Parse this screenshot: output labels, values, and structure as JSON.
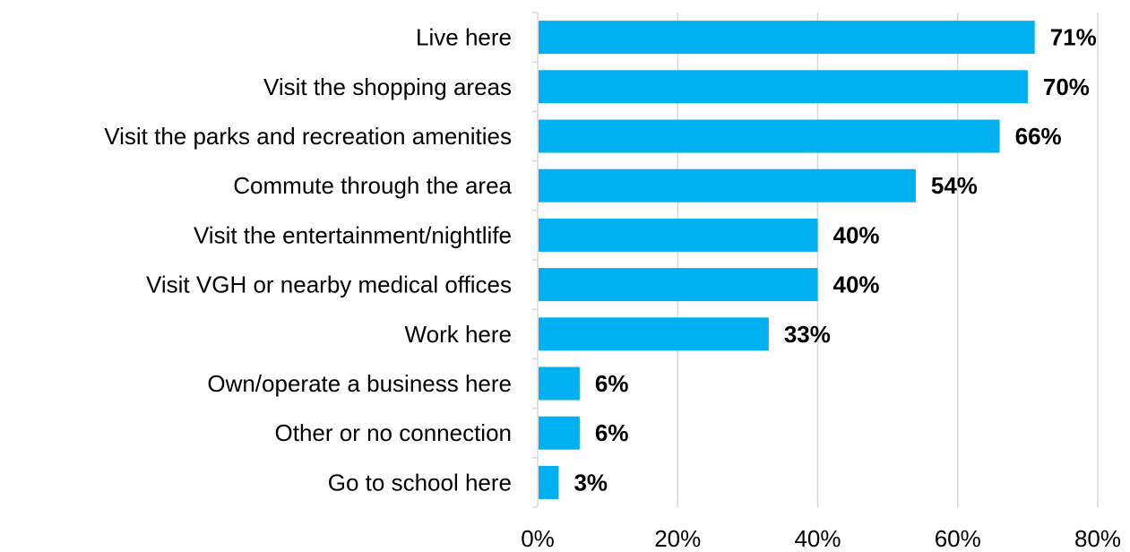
{
  "chart_data": {
    "type": "bar",
    "orientation": "horizontal",
    "categories": [
      "Live here",
      "Visit the shopping areas",
      "Visit the parks and recreation amenities",
      "Commute through the area",
      "Visit the entertainment/nightlife",
      "Visit VGH or nearby medical offices",
      "Work here",
      "Own/operate a business here",
      "Other or no connection",
      "Go to school here"
    ],
    "values": [
      71,
      70,
      66,
      54,
      40,
      40,
      33,
      6,
      6,
      3
    ],
    "value_labels": [
      "71%",
      "70%",
      "66%",
      "54%",
      "40%",
      "40%",
      "33%",
      "6%",
      "6%",
      "3%"
    ],
    "x_ticks": [
      0,
      20,
      40,
      60,
      80
    ],
    "x_tick_labels": [
      "0%",
      "20%",
      "40%",
      "60%",
      "80%"
    ],
    "xlim": [
      0,
      80
    ],
    "title": "",
    "xlabel": "",
    "ylabel": "",
    "grid": "vertical",
    "legend": "none",
    "bar_color": "#00b0f0"
  }
}
